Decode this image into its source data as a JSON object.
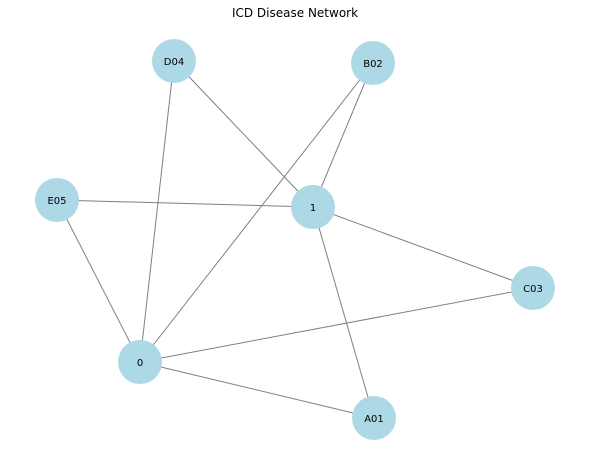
{
  "title": "ICD Disease Network",
  "style": {
    "node_color": "#add8e6",
    "edge_color": "#808080",
    "background": "#ffffff"
  },
  "nodes": [
    {
      "id": "D04",
      "label": "D04"
    },
    {
      "id": "B02",
      "label": "B02"
    },
    {
      "id": "E05",
      "label": "E05"
    },
    {
      "id": "1",
      "label": "1"
    },
    {
      "id": "C03",
      "label": "C03"
    },
    {
      "id": "0",
      "label": "0"
    },
    {
      "id": "A01",
      "label": "A01"
    }
  ],
  "edges": [
    {
      "source": "D04",
      "target": "1"
    },
    {
      "source": "D04",
      "target": "0"
    },
    {
      "source": "B02",
      "target": "1"
    },
    {
      "source": "B02",
      "target": "0"
    },
    {
      "source": "E05",
      "target": "1"
    },
    {
      "source": "E05",
      "target": "0"
    },
    {
      "source": "1",
      "target": "C03"
    },
    {
      "source": "1",
      "target": "A01"
    },
    {
      "source": "C03",
      "target": "0"
    },
    {
      "source": "0",
      "target": "A01"
    }
  ]
}
